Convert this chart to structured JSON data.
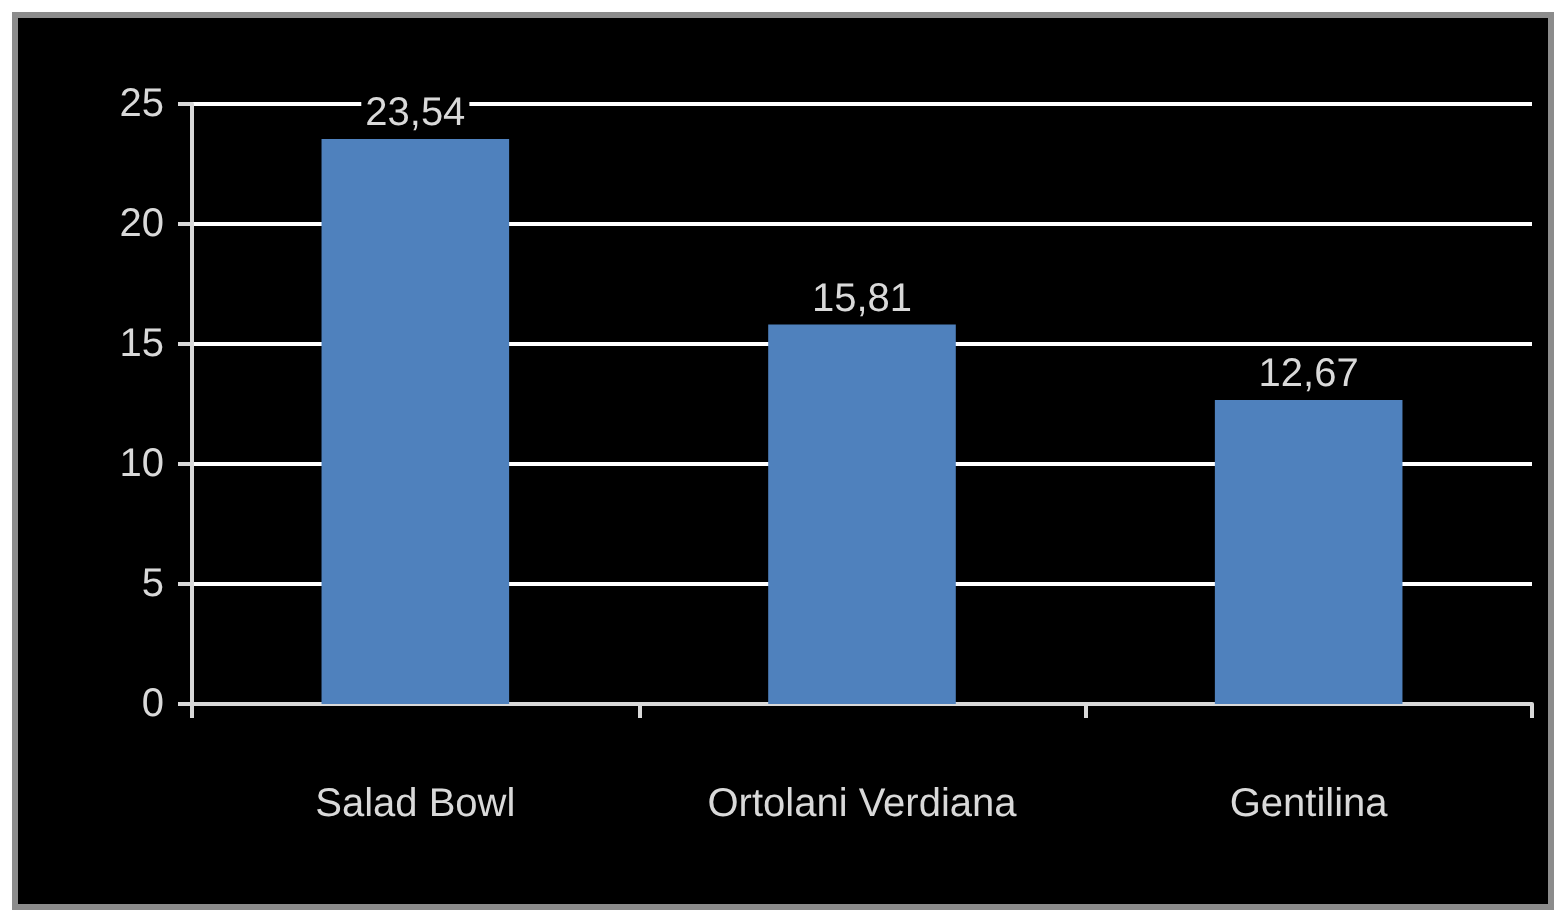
{
  "chart_data": {
    "type": "bar",
    "categories": [
      "Salad Bowl",
      "Ortolani Verdiana",
      "Gentilina"
    ],
    "values": [
      23.54,
      15.81,
      12.67
    ],
    "value_labels": [
      "23,54",
      "15,81",
      "12,67"
    ],
    "color": "#4f81bd",
    "ylim": [
      0,
      25
    ],
    "yticks": [
      0,
      5,
      10,
      15,
      20,
      25
    ],
    "grid": "y"
  }
}
